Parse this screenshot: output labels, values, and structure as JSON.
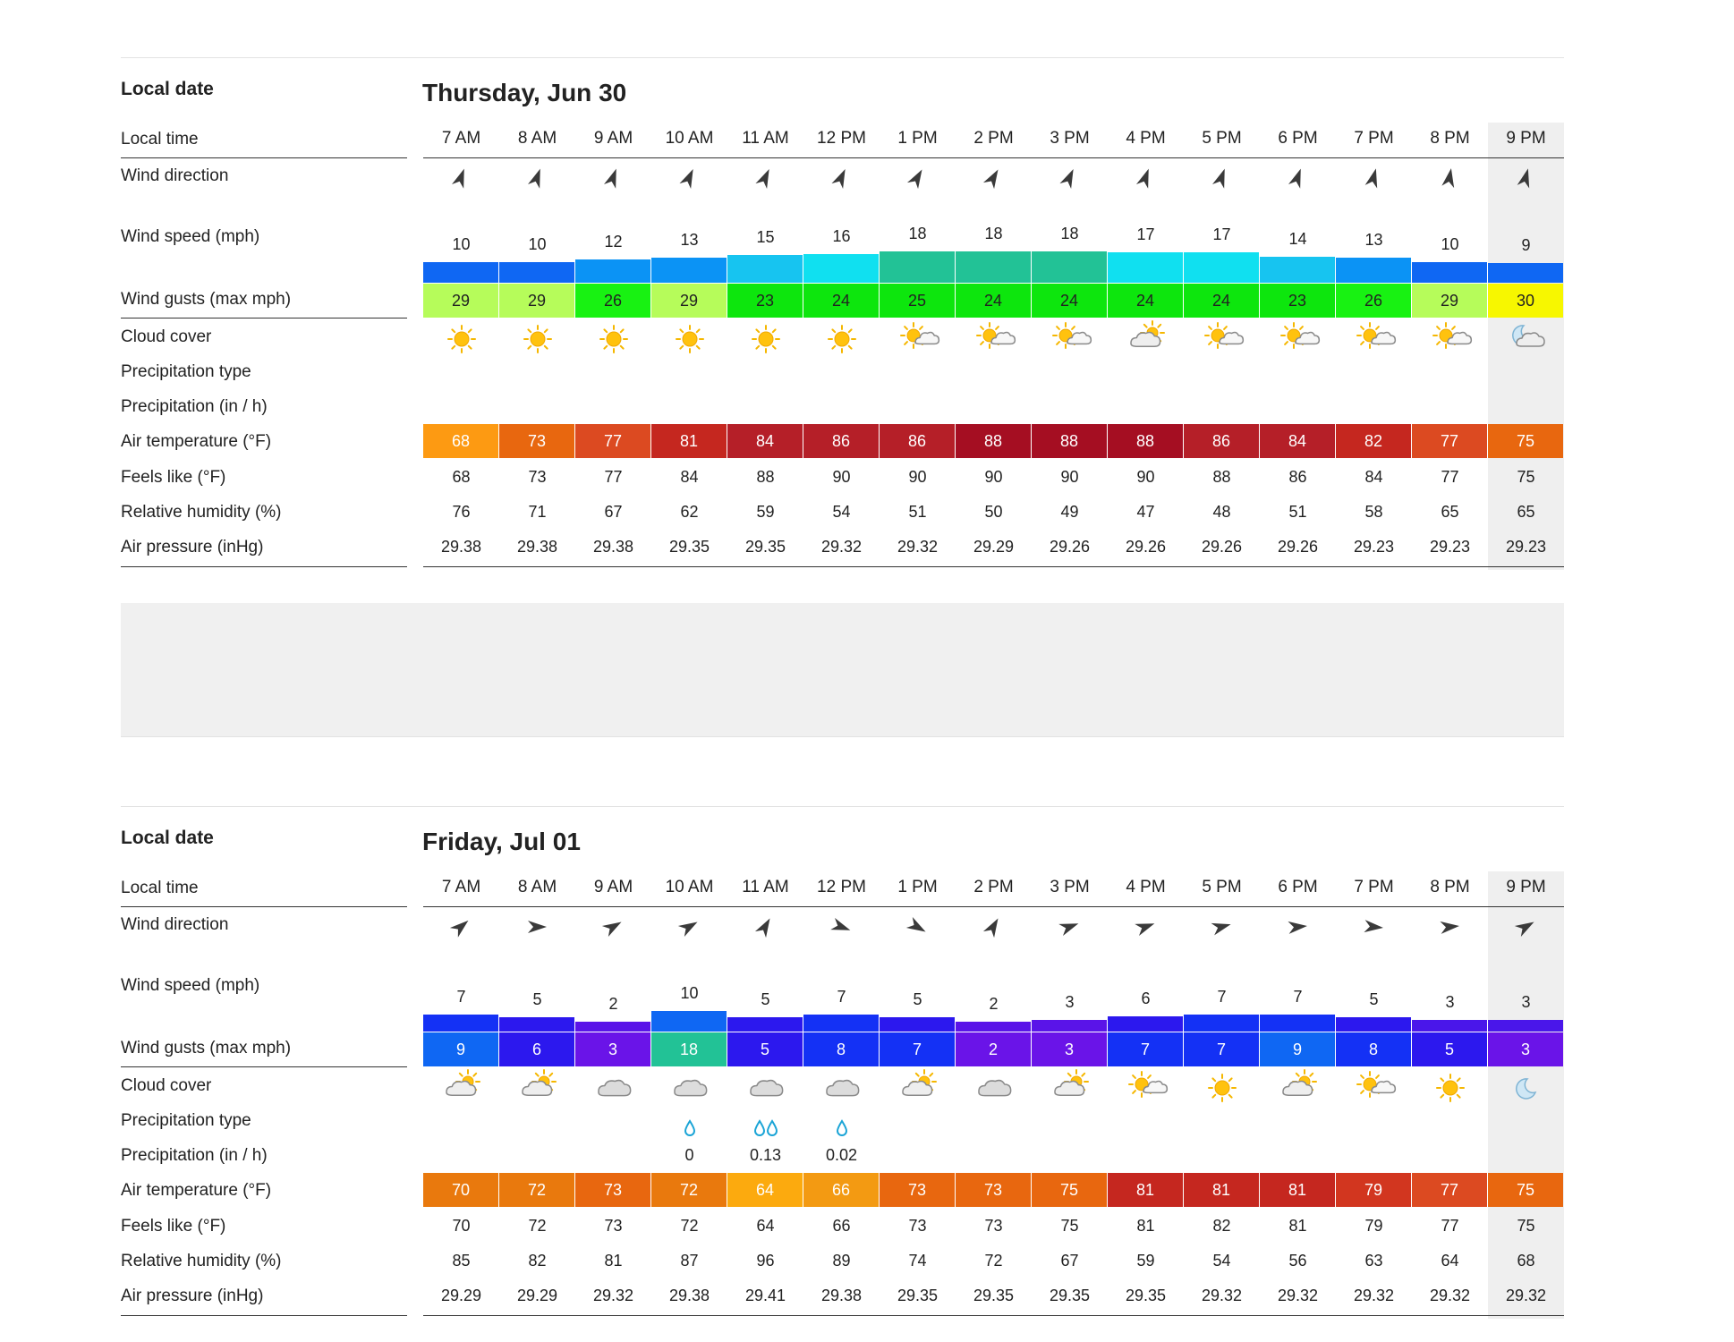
{
  "labels": {
    "local_date": "Local date",
    "local_time": "Local time",
    "wind_direction": "Wind direction",
    "wind_speed": "Wind speed (mph)",
    "wind_gusts": "Wind gusts (max mph)",
    "cloud_cover": "Cloud cover",
    "precip_type": "Precipitation type",
    "precip": "Precipitation (in / h)",
    "air_temp": "Air temperature (°F)",
    "feels_like": "Feels like (°F)",
    "humidity": "Relative humidity (%)",
    "pressure": "Air pressure (inHg)"
  },
  "days": [
    {
      "date": "Thursday, Jun 30",
      "hours": [
        "7 AM",
        "8 AM",
        "9 AM",
        "10 AM",
        "11 AM",
        "12 PM",
        "1 PM",
        "2 PM",
        "3 PM",
        "4 PM",
        "5 PM",
        "6 PM",
        "7 PM",
        "8 PM",
        "9 PM"
      ],
      "wind_dir_deg": [
        20,
        20,
        20,
        25,
        25,
        25,
        30,
        30,
        25,
        20,
        20,
        20,
        15,
        10,
        15
      ],
      "wind_speed": [
        "10",
        "10",
        "12",
        "13",
        "15",
        "16",
        "18",
        "18",
        "18",
        "17",
        "17",
        "14",
        "13",
        "10",
        "9"
      ],
      "wind_speed_colors": [
        "#0f67f3",
        "#0f67f3",
        "#0b93f5",
        "#0b93f5",
        "#17c4f0",
        "#10e0f0",
        "#22c296",
        "#22c296",
        "#22c296",
        "#10e0f0",
        "#10e0f0",
        "#17c4f0",
        "#0b93f5",
        "#0f67f3",
        "#0f67f3"
      ],
      "wind_gusts": [
        "29",
        "29",
        "26",
        "29",
        "23",
        "24",
        "25",
        "24",
        "24",
        "24",
        "24",
        "23",
        "26",
        "29",
        "30"
      ],
      "wind_gust_colors": [
        "#b6fc5a",
        "#b6fc5a",
        "#18f212",
        "#b6fc5a",
        "#0de60d",
        "#0de60d",
        "#0de60d",
        "#0de60d",
        "#0de60d",
        "#0de60d",
        "#0de60d",
        "#0de60d",
        "#18f212",
        "#b6fc5a",
        "#f7f700"
      ],
      "cloud_icons": [
        "sun-icon",
        "sun-icon",
        "sun-icon",
        "sun-icon",
        "sun-icon",
        "sun-icon",
        "sun-cloud-icon",
        "sun-cloud-icon",
        "sun-cloud-icon",
        "cloud-sun-icon",
        "sun-cloud-icon",
        "sun-cloud-icon",
        "sun-cloud-icon",
        "sun-cloud-icon",
        "moon-cloud-icon"
      ],
      "precip_type": [
        "",
        "",
        "",
        "",
        "",
        "",
        "",
        "",
        "",
        "",
        "",
        "",
        "",
        "",
        ""
      ],
      "precip": [
        "",
        "",
        "",
        "",
        "",
        "",
        "",
        "",
        "",
        "",
        "",
        "",
        "",
        "",
        ""
      ],
      "air_temp": [
        "68",
        "73",
        "77",
        "81",
        "84",
        "86",
        "86",
        "88",
        "88",
        "88",
        "86",
        "84",
        "82",
        "77",
        "75"
      ],
      "air_temp_colors": [
        "#fd9a12",
        "#e8670f",
        "#dc4a21",
        "#c5271f",
        "#b51f28",
        "#b51f28",
        "#b51f28",
        "#a50e22",
        "#a50e22",
        "#a50e22",
        "#b51f28",
        "#b51f28",
        "#c5271f",
        "#dc4a21",
        "#e8670f"
      ],
      "feels_like": [
        "68",
        "73",
        "77",
        "84",
        "88",
        "90",
        "90",
        "90",
        "90",
        "90",
        "88",
        "86",
        "84",
        "77",
        "75"
      ],
      "humidity": [
        "76",
        "71",
        "67",
        "62",
        "59",
        "54",
        "51",
        "50",
        "49",
        "47",
        "48",
        "51",
        "58",
        "65",
        "65"
      ],
      "pressure": [
        "29.38",
        "29.38",
        "29.38",
        "29.35",
        "29.35",
        "29.32",
        "29.32",
        "29.29",
        "29.26",
        "29.26",
        "29.26",
        "29.26",
        "29.23",
        "29.23",
        "29.23"
      ]
    },
    {
      "date": "Friday, Jul 01",
      "hours": [
        "7 AM",
        "8 AM",
        "9 AM",
        "10 AM",
        "11 AM",
        "12 PM",
        "1 PM",
        "2 PM",
        "3 PM",
        "4 PM",
        "5 PM",
        "6 PM",
        "7 PM",
        "8 PM",
        "9 PM"
      ],
      "wind_dir_deg": [
        50,
        90,
        60,
        60,
        30,
        110,
        120,
        30,
        70,
        70,
        75,
        85,
        95,
        85,
        60
      ],
      "wind_speed": [
        "7",
        "5",
        "2",
        "10",
        "5",
        "7",
        "5",
        "2",
        "3",
        "6",
        "7",
        "7",
        "5",
        "3",
        "3"
      ],
      "wind_speed_colors": [
        "#1431f5",
        "#2c18ee",
        "#5a14e8",
        "#0f67f3",
        "#2c18ee",
        "#1431f5",
        "#2c18ee",
        "#5a14e8",
        "#5a14e8",
        "#2c18ee",
        "#1431f5",
        "#1431f5",
        "#2c18ee",
        "#4a16ea",
        "#4a16ea"
      ],
      "wind_gusts": [
        "9",
        "6",
        "3",
        "18",
        "5",
        "8",
        "7",
        "2",
        "3",
        "7",
        "7",
        "9",
        "8",
        "5",
        "3"
      ],
      "wind_gust_colors": [
        "#0f67f3",
        "#2c18ee",
        "#6a14e8",
        "#22c296",
        "#2c18ee",
        "#1431f5",
        "#1431f5",
        "#6a14e8",
        "#6a14e8",
        "#1431f5",
        "#1431f5",
        "#0f67f3",
        "#1431f5",
        "#2c18ee",
        "#6a14e8"
      ],
      "cloud_icons": [
        "cloud-sun-icon",
        "cloud-sun-icon",
        "cloud-icon",
        "cloud-icon",
        "cloud-icon",
        "cloud-icon",
        "cloud-sun-icon",
        "cloud-icon",
        "cloud-sun-icon",
        "sun-cloud-icon",
        "sun-icon",
        "cloud-sun-icon",
        "sun-cloud-icon",
        "sun-icon",
        "moon-icon"
      ],
      "precip_type": [
        "",
        "",
        "",
        "rain-drop-icon",
        "rain-drops-icon",
        "rain-drop-icon",
        "",
        "",
        "",
        "",
        "",
        "",
        "",
        "",
        ""
      ],
      "precip": [
        "",
        "",
        "",
        "0",
        "0.13",
        "0.02",
        "",
        "",
        "",
        "",
        "",
        "",
        "",
        "",
        ""
      ],
      "air_temp": [
        "70",
        "72",
        "73",
        "72",
        "64",
        "66",
        "73",
        "73",
        "75",
        "81",
        "81",
        "81",
        "79",
        "77",
        "75"
      ],
      "air_temp_colors": [
        "#e9790d",
        "#e9790d",
        "#e8670f",
        "#e9790d",
        "#fcaa0e",
        "#f39a12",
        "#e8670f",
        "#e8670f",
        "#e8670f",
        "#c5271f",
        "#c5271f",
        "#c5271f",
        "#d2361f",
        "#dc4a21",
        "#e8670f"
      ],
      "feels_like": [
        "70",
        "72",
        "73",
        "72",
        "64",
        "66",
        "73",
        "73",
        "75",
        "81",
        "82",
        "81",
        "79",
        "77",
        "75"
      ],
      "humidity": [
        "85",
        "82",
        "81",
        "87",
        "96",
        "89",
        "74",
        "72",
        "67",
        "59",
        "54",
        "56",
        "63",
        "64",
        "68"
      ],
      "pressure": [
        "29.29",
        "29.29",
        "29.32",
        "29.38",
        "29.41",
        "29.38",
        "29.35",
        "29.35",
        "29.35",
        "29.35",
        "29.32",
        "29.32",
        "29.32",
        "29.32",
        "29.32"
      ]
    }
  ]
}
